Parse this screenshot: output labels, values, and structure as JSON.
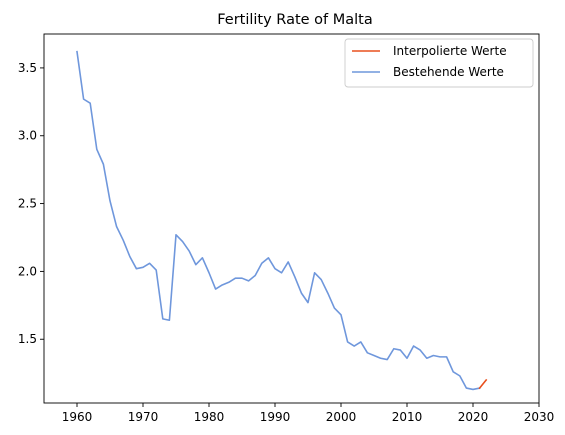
{
  "chart_data": {
    "type": "line",
    "title": "Fertility Rate of Malta",
    "xlabel": "",
    "ylabel": "",
    "xlim": [
      1955,
      2030
    ],
    "ylim": [
      1.03,
      3.75
    ],
    "xticks": [
      1960,
      1970,
      1980,
      1990,
      2000,
      2010,
      2020,
      2030
    ],
    "yticks": [
      1.5,
      2.0,
      2.5,
      3.0,
      3.5
    ],
    "xtick_labels": [
      "1960",
      "1970",
      "1980",
      "1990",
      "2000",
      "2010",
      "2020",
      "2030"
    ],
    "ytick_labels": [
      "1.5",
      "2.0",
      "2.5",
      "3.0",
      "3.5"
    ],
    "grid": false,
    "legend_position": "top-right",
    "series": [
      {
        "name": "Interpolierte Werte",
        "color": "#e8501e",
        "x": [
          2021,
          2022
        ],
        "y": [
          1.14,
          1.2
        ]
      },
      {
        "name": "Bestehende Werte",
        "color": "#6f97dc",
        "x": [
          1960,
          1961,
          1962,
          1963,
          1964,
          1965,
          1966,
          1967,
          1968,
          1969,
          1970,
          1971,
          1972,
          1973,
          1974,
          1975,
          1976,
          1977,
          1978,
          1979,
          1980,
          1981,
          1982,
          1983,
          1984,
          1985,
          1986,
          1987,
          1988,
          1989,
          1990,
          1991,
          1992,
          1993,
          1994,
          1995,
          1996,
          1997,
          1998,
          1999,
          2000,
          2001,
          2002,
          2003,
          2004,
          2005,
          2006,
          2007,
          2008,
          2009,
          2010,
          2011,
          2012,
          2013,
          2014,
          2015,
          2016,
          2017,
          2018,
          2019,
          2020,
          2021
        ],
        "y": [
          3.62,
          3.27,
          3.24,
          2.9,
          2.79,
          2.52,
          2.33,
          2.23,
          2.11,
          2.02,
          2.03,
          2.06,
          2.01,
          1.65,
          1.64,
          2.27,
          2.22,
          2.15,
          2.05,
          2.1,
          1.99,
          1.87,
          1.9,
          1.92,
          1.95,
          1.95,
          1.93,
          1.97,
          2.06,
          2.1,
          2.02,
          1.99,
          2.07,
          1.96,
          1.84,
          1.77,
          1.99,
          1.94,
          1.84,
          1.73,
          1.68,
          1.48,
          1.45,
          1.48,
          1.4,
          1.38,
          1.36,
          1.35,
          1.43,
          1.42,
          1.36,
          1.45,
          1.42,
          1.36,
          1.38,
          1.37,
          1.37,
          1.26,
          1.23,
          1.14,
          1.13,
          1.14
        ]
      }
    ]
  }
}
